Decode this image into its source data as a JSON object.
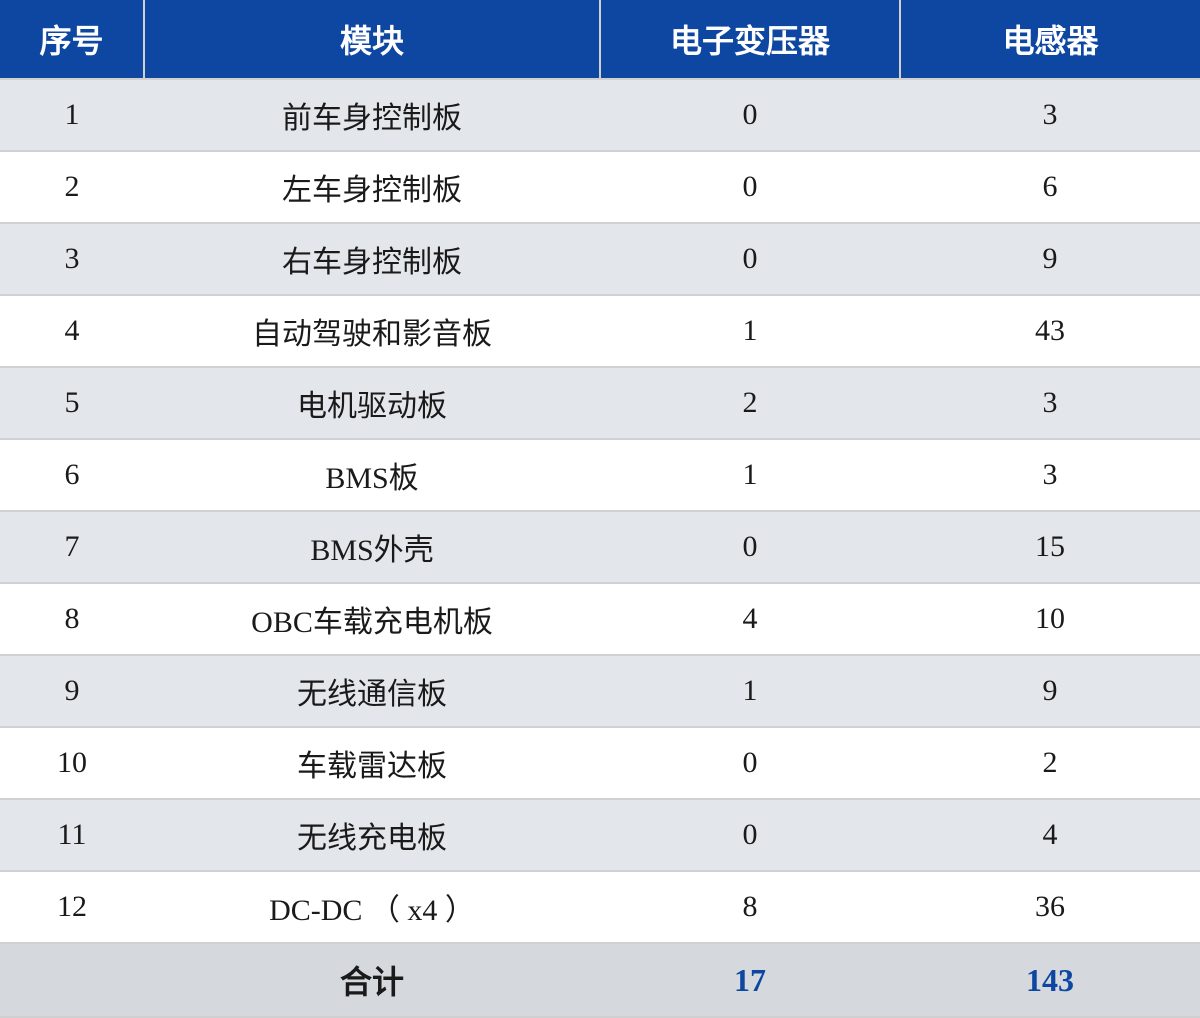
{
  "table": {
    "type": "table",
    "columns": [
      {
        "key": "index",
        "label": "序号",
        "width_pct": 12,
        "align": "center"
      },
      {
        "key": "module",
        "label": "模块",
        "width_pct": 38,
        "align": "center"
      },
      {
        "key": "transformer",
        "label": "电子变压器",
        "width_pct": 25,
        "align": "center"
      },
      {
        "key": "inductor",
        "label": "电感器",
        "width_pct": 25,
        "align": "center"
      }
    ],
    "rows": [
      {
        "index": "1",
        "module": "前车身控制板",
        "transformer": "0",
        "inductor": "3"
      },
      {
        "index": "2",
        "module": "左车身控制板",
        "transformer": "0",
        "inductor": "6"
      },
      {
        "index": "3",
        "module": "右车身控制板",
        "transformer": "0",
        "inductor": "9"
      },
      {
        "index": "4",
        "module": "自动驾驶和影音板",
        "transformer": "1",
        "inductor": "43"
      },
      {
        "index": "5",
        "module": "电机驱动板",
        "transformer": "2",
        "inductor": "3"
      },
      {
        "index": "6",
        "module": "BMS板",
        "transformer": "1",
        "inductor": "3"
      },
      {
        "index": "7",
        "module": "BMS外壳",
        "transformer": "0",
        "inductor": "15"
      },
      {
        "index": "8",
        "module": "OBC车载充电机板",
        "transformer": "4",
        "inductor": "10"
      },
      {
        "index": "9",
        "module": "无线通信板",
        "transformer": "1",
        "inductor": "9"
      },
      {
        "index": "10",
        "module": "车载雷达板",
        "transformer": "0",
        "inductor": "2"
      },
      {
        "index": "11",
        "module": "无线充电板",
        "transformer": "0",
        "inductor": "4"
      },
      {
        "index": "12",
        "module": "DC-DC （ x4 ）",
        "transformer": "8",
        "inductor": "36"
      }
    ],
    "total": {
      "label": "合计",
      "transformer": "17",
      "inductor": "143"
    },
    "styling": {
      "header_bg_color": "#0d47a1",
      "header_text_color": "#ffffff",
      "header_fontsize": 32,
      "header_fontweight": "bold",
      "odd_row_bg_color": "#e3e6ea",
      "even_row_bg_color": "#ffffff",
      "total_row_bg_color": "#d5d9de",
      "total_value_color": "#0d47a1",
      "cell_fontsize": 30,
      "cell_text_color": "#1a1a1a",
      "border_color": "#d0d0d0",
      "font_family_header": "SimHei",
      "font_family_body": "SimSun"
    }
  }
}
